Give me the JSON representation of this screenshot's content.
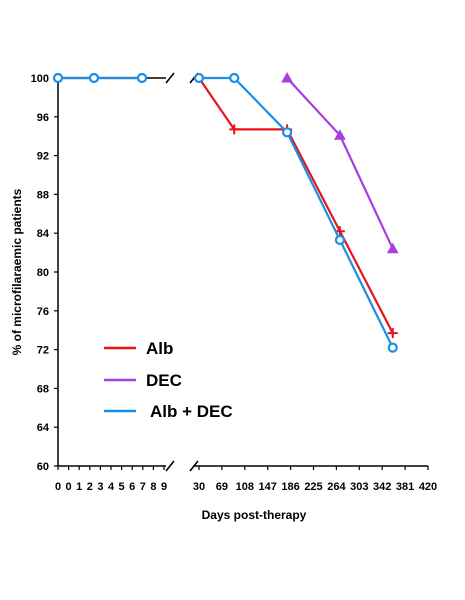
{
  "chart_data": {
    "type": "line",
    "xlabel": "Days post-therapy",
    "ylabel": "% of microfilaraemic patients",
    "ylim": [
      60,
      100
    ],
    "y_ticks": [
      60,
      64,
      68,
      72,
      76,
      80,
      84,
      88,
      92,
      96,
      100
    ],
    "x_axis_broken": true,
    "x_ticks_left_segment": [
      "0",
      "0",
      "1",
      "2",
      "3",
      "4",
      "5",
      "6",
      "7",
      "8",
      "9"
    ],
    "x_ticks_right_segment": [
      "30",
      "69",
      "108",
      "147",
      "186",
      "225",
      "264",
      "303",
      "342",
      "381",
      "420"
    ],
    "grid": false,
    "legend_position": "lower-left",
    "series": [
      {
        "name": "Alb",
        "color": "#e8141c",
        "marker": "plus",
        "x": [
          0,
          3,
          7,
          30,
          90,
          180,
          270,
          360
        ],
        "y": [
          100,
          100,
          100,
          100,
          94.7,
          94.7,
          84.2,
          73.7
        ]
      },
      {
        "name": "DEC",
        "color": "#a83ee2",
        "marker": "triangle",
        "x": [
          180,
          270,
          360
        ],
        "y": [
          100,
          94.1,
          82.4
        ]
      },
      {
        "name": "Alb + DEC",
        "color": "#1a8ee8",
        "marker": "circle",
        "x": [
          0,
          3,
          7,
          30,
          90,
          180,
          270,
          360
        ],
        "y": [
          100,
          100,
          100,
          100,
          100,
          94.4,
          83.3,
          72.2
        ]
      }
    ]
  }
}
